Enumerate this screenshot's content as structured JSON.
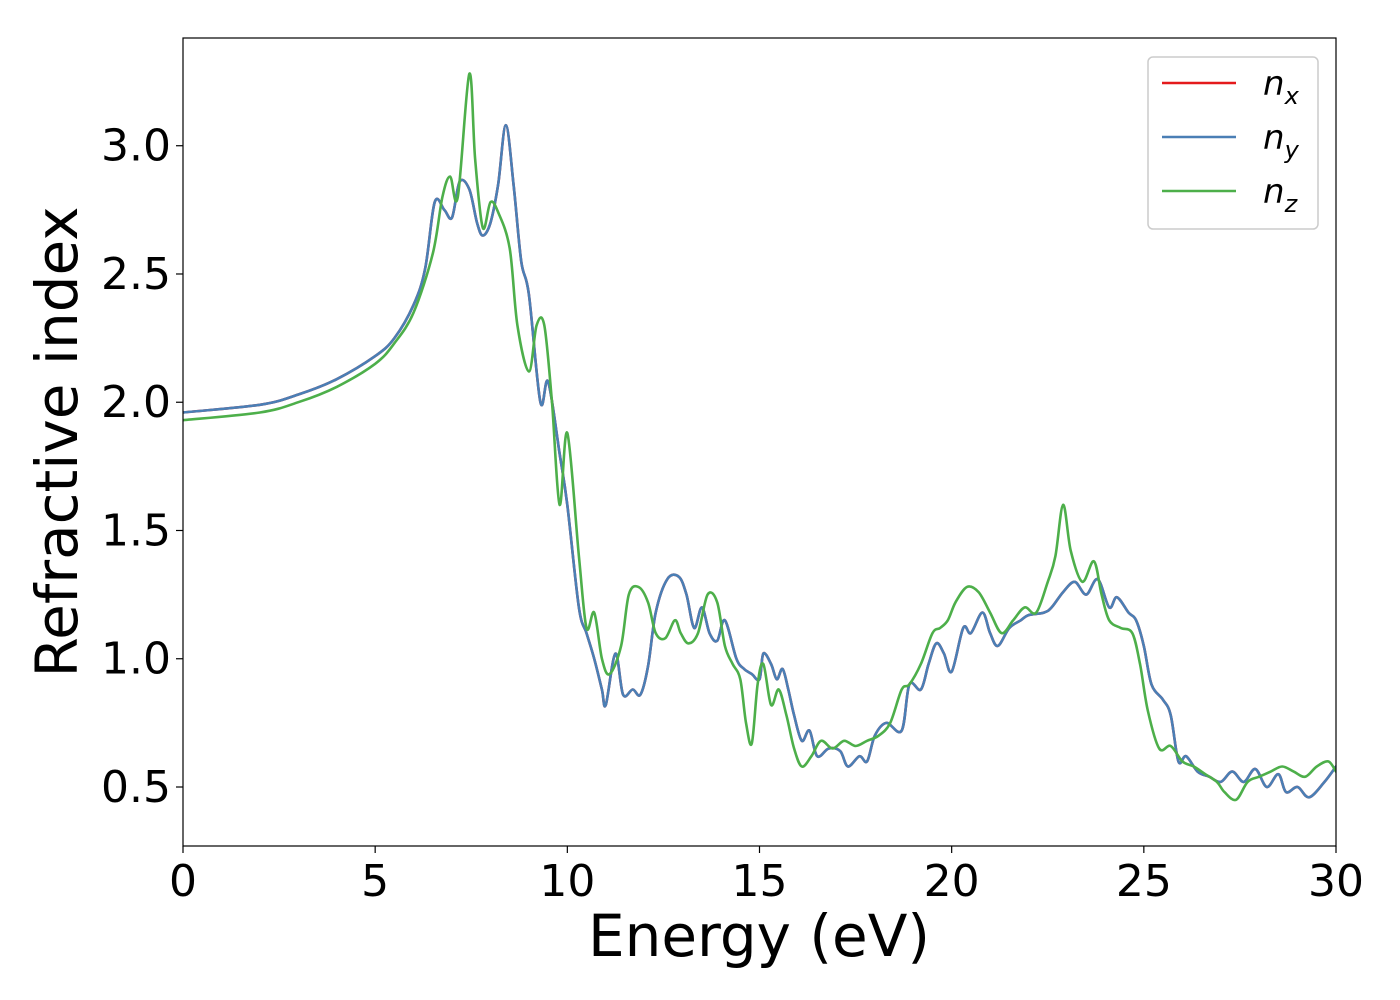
{
  "chart_data": {
    "type": "line",
    "title": "",
    "xlabel": "Energy (eV)",
    "ylabel": "Refractive index",
    "xlim": [
      0,
      30
    ],
    "ylim": [
      0.27,
      3.42
    ],
    "xticks": [
      0,
      5,
      10,
      15,
      20,
      25,
      30
    ],
    "xtick_labels": [
      "0",
      "5",
      "10",
      "15",
      "20",
      "25",
      "30"
    ],
    "yticks": [
      0.5,
      1.0,
      1.5,
      2.0,
      2.5,
      3.0
    ],
    "ytick_labels": [
      "0.5",
      "1.0",
      "1.5",
      "2.0",
      "2.5",
      "3.0"
    ],
    "grid": false,
    "legend": {
      "position": "top-right"
    },
    "series": [
      {
        "name": "n_x",
        "label_base": "n",
        "label_sub": "x",
        "color": "#e41a1c",
        "x": [
          0,
          2,
          3,
          4,
          5,
          5.5,
          6,
          6.3,
          6.55,
          6.8,
          7.0,
          7.2,
          7.45,
          7.65,
          7.8,
          8.0,
          8.2,
          8.4,
          8.6,
          8.8,
          9.0,
          9.3,
          9.5,
          9.8,
          10.0,
          10.3,
          10.5,
          10.7,
          10.9,
          11.0,
          11.25,
          11.45,
          11.7,
          11.9,
          12.1,
          12.3,
          12.6,
          12.9,
          13.1,
          13.3,
          13.5,
          13.7,
          13.9,
          14.1,
          14.4,
          14.6,
          14.8,
          15.0,
          15.1,
          15.3,
          15.45,
          15.6,
          15.75,
          15.9,
          16.1,
          16.3,
          16.5,
          16.8,
          17.1,
          17.3,
          17.6,
          17.8,
          18.0,
          18.3,
          18.7,
          18.9,
          19.2,
          19.4,
          19.6,
          19.8,
          20.0,
          20.3,
          20.5,
          20.8,
          21.0,
          21.2,
          21.5,
          21.8,
          22.0,
          22.4,
          22.6,
          22.9,
          23.2,
          23.5,
          23.8,
          24.1,
          24.3,
          24.6,
          24.8,
          25.0,
          25.2,
          25.5,
          25.7,
          25.9,
          26.1,
          26.4,
          26.7,
          27.0,
          27.3,
          27.6,
          27.9,
          28.2,
          28.5,
          28.7,
          29.0,
          29.3,
          29.7,
          30.0
        ],
        "y": [
          1.96,
          1.99,
          2.03,
          2.09,
          2.18,
          2.25,
          2.38,
          2.52,
          2.78,
          2.75,
          2.72,
          2.86,
          2.83,
          2.7,
          2.65,
          2.7,
          2.85,
          3.08,
          2.85,
          2.55,
          2.42,
          2.0,
          2.08,
          1.8,
          1.6,
          1.2,
          1.1,
          1.0,
          0.88,
          0.82,
          1.02,
          0.86,
          0.88,
          0.86,
          0.97,
          1.18,
          1.31,
          1.32,
          1.25,
          1.12,
          1.2,
          1.1,
          1.07,
          1.15,
          1.0,
          0.96,
          0.94,
          0.92,
          1.02,
          0.98,
          0.92,
          0.96,
          0.88,
          0.78,
          0.68,
          0.72,
          0.62,
          0.65,
          0.64,
          0.58,
          0.62,
          0.6,
          0.7,
          0.75,
          0.72,
          0.9,
          0.88,
          0.98,
          1.06,
          1.02,
          0.95,
          1.12,
          1.1,
          1.18,
          1.1,
          1.05,
          1.12,
          1.15,
          1.17,
          1.18,
          1.2,
          1.26,
          1.3,
          1.25,
          1.31,
          1.2,
          1.24,
          1.18,
          1.15,
          1.05,
          0.9,
          0.84,
          0.78,
          0.6,
          0.62,
          0.56,
          0.54,
          0.52,
          0.56,
          0.52,
          0.57,
          0.5,
          0.55,
          0.48,
          0.5,
          0.46,
          0.52,
          0.58
        ]
      },
      {
        "name": "n_y",
        "label_base": "n",
        "label_sub": "y",
        "color": "#4a7fb5",
        "x": [
          0,
          2,
          3,
          4,
          5,
          5.5,
          6,
          6.3,
          6.55,
          6.8,
          7.0,
          7.2,
          7.45,
          7.65,
          7.8,
          8.0,
          8.2,
          8.4,
          8.6,
          8.8,
          9.0,
          9.3,
          9.5,
          9.8,
          10.0,
          10.3,
          10.5,
          10.7,
          10.9,
          11.0,
          11.25,
          11.45,
          11.7,
          11.9,
          12.1,
          12.3,
          12.6,
          12.9,
          13.1,
          13.3,
          13.5,
          13.7,
          13.9,
          14.1,
          14.4,
          14.6,
          14.8,
          15.0,
          15.1,
          15.3,
          15.45,
          15.6,
          15.75,
          15.9,
          16.1,
          16.3,
          16.5,
          16.8,
          17.1,
          17.3,
          17.6,
          17.8,
          18.0,
          18.3,
          18.7,
          18.9,
          19.2,
          19.4,
          19.6,
          19.8,
          20.0,
          20.3,
          20.5,
          20.8,
          21.0,
          21.2,
          21.5,
          21.8,
          22.0,
          22.4,
          22.6,
          22.9,
          23.2,
          23.5,
          23.8,
          24.1,
          24.3,
          24.6,
          24.8,
          25.0,
          25.2,
          25.5,
          25.7,
          25.9,
          26.1,
          26.4,
          26.7,
          27.0,
          27.3,
          27.6,
          27.9,
          28.2,
          28.5,
          28.7,
          29.0,
          29.3,
          29.7,
          30.0
        ],
        "y": [
          1.96,
          1.99,
          2.03,
          2.09,
          2.18,
          2.25,
          2.38,
          2.52,
          2.78,
          2.75,
          2.72,
          2.86,
          2.83,
          2.7,
          2.65,
          2.7,
          2.85,
          3.08,
          2.85,
          2.55,
          2.42,
          2.0,
          2.08,
          1.8,
          1.6,
          1.2,
          1.1,
          1.0,
          0.88,
          0.82,
          1.02,
          0.86,
          0.88,
          0.86,
          0.97,
          1.18,
          1.31,
          1.32,
          1.25,
          1.12,
          1.2,
          1.1,
          1.07,
          1.15,
          1.0,
          0.96,
          0.94,
          0.92,
          1.02,
          0.98,
          0.92,
          0.96,
          0.88,
          0.78,
          0.68,
          0.72,
          0.62,
          0.65,
          0.64,
          0.58,
          0.62,
          0.6,
          0.7,
          0.75,
          0.72,
          0.9,
          0.88,
          0.98,
          1.06,
          1.02,
          0.95,
          1.12,
          1.1,
          1.18,
          1.1,
          1.05,
          1.12,
          1.15,
          1.17,
          1.18,
          1.2,
          1.26,
          1.3,
          1.25,
          1.31,
          1.2,
          1.24,
          1.18,
          1.15,
          1.05,
          0.9,
          0.84,
          0.78,
          0.6,
          0.62,
          0.56,
          0.54,
          0.52,
          0.56,
          0.52,
          0.57,
          0.5,
          0.55,
          0.48,
          0.5,
          0.46,
          0.52,
          0.58
        ]
      },
      {
        "name": "n_z",
        "label_base": "n",
        "label_sub": "z",
        "color": "#4daf4a",
        "x": [
          0,
          2,
          3,
          4,
          5,
          5.5,
          6,
          6.5,
          6.75,
          6.95,
          7.15,
          7.45,
          7.6,
          7.8,
          8.0,
          8.2,
          8.5,
          8.7,
          9.0,
          9.2,
          9.4,
          9.6,
          9.8,
          10.0,
          10.3,
          10.5,
          10.7,
          10.9,
          11.1,
          11.4,
          11.6,
          11.85,
          12.1,
          12.3,
          12.55,
          12.8,
          12.95,
          13.15,
          13.4,
          13.65,
          13.9,
          14.1,
          14.3,
          14.5,
          14.65,
          14.8,
          14.95,
          15.1,
          15.3,
          15.5,
          15.7,
          15.9,
          16.1,
          16.35,
          16.6,
          16.9,
          17.2,
          17.5,
          17.8,
          18.1,
          18.4,
          18.7,
          18.9,
          19.2,
          19.5,
          19.7,
          19.9,
          20.1,
          20.4,
          20.7,
          21.0,
          21.3,
          21.6,
          21.9,
          22.2,
          22.5,
          22.7,
          22.9,
          23.1,
          23.4,
          23.7,
          23.9,
          24.1,
          24.4,
          24.7,
          24.9,
          25.1,
          25.4,
          25.7,
          26.0,
          26.3,
          26.6,
          26.9,
          27.1,
          27.4,
          27.7,
          28.0,
          28.3,
          28.6,
          28.9,
          29.2,
          29.5,
          29.8,
          30.0
        ],
        "y": [
          1.93,
          1.96,
          2.0,
          2.06,
          2.15,
          2.23,
          2.35,
          2.58,
          2.8,
          2.88,
          2.8,
          3.28,
          2.95,
          2.68,
          2.78,
          2.74,
          2.6,
          2.3,
          2.12,
          2.3,
          2.3,
          2.0,
          1.6,
          1.88,
          1.4,
          1.12,
          1.18,
          1.0,
          0.94,
          1.05,
          1.25,
          1.28,
          1.22,
          1.1,
          1.08,
          1.15,
          1.1,
          1.06,
          1.1,
          1.25,
          1.22,
          1.05,
          0.98,
          0.92,
          0.75,
          0.67,
          0.9,
          0.98,
          0.82,
          0.88,
          0.78,
          0.65,
          0.58,
          0.62,
          0.68,
          0.65,
          0.68,
          0.66,
          0.68,
          0.7,
          0.75,
          0.88,
          0.9,
          0.98,
          1.1,
          1.12,
          1.15,
          1.22,
          1.28,
          1.26,
          1.18,
          1.1,
          1.15,
          1.2,
          1.18,
          1.3,
          1.4,
          1.6,
          1.42,
          1.3,
          1.38,
          1.25,
          1.15,
          1.12,
          1.1,
          0.98,
          0.8,
          0.65,
          0.66,
          0.6,
          0.58,
          0.55,
          0.52,
          0.48,
          0.45,
          0.52,
          0.54,
          0.56,
          0.58,
          0.56,
          0.54,
          0.58,
          0.6,
          0.56
        ]
      }
    ]
  }
}
